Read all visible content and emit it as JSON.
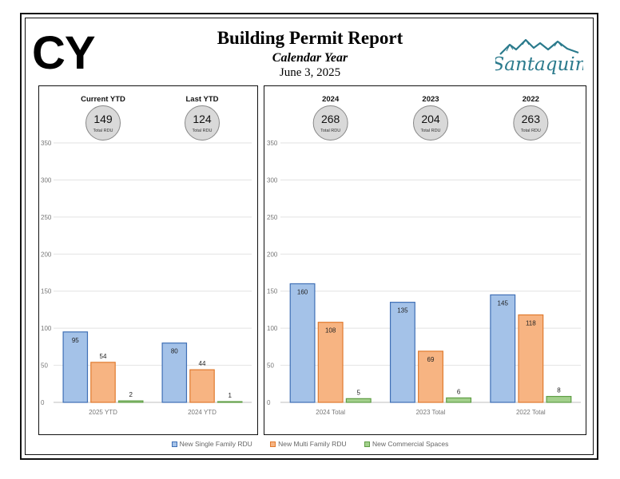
{
  "header": {
    "badge": "CY",
    "title": "Building Permit Report",
    "subtitle": "Calendar Year",
    "date": "June 3, 2025",
    "logo_text": "Santaquin"
  },
  "colors": {
    "single_fill": "#a4c2e8",
    "single_stroke": "#3f6fb5",
    "multi_fill": "#f7b482",
    "multi_stroke": "#e07a2e",
    "comm_fill": "#a3d08c",
    "comm_stroke": "#5f9e45",
    "logo": "#2a7a8c",
    "circle_fill": "#d9d9d9"
  },
  "legend": [
    {
      "label": "New Single Family RDU",
      "series": 0
    },
    {
      "label": "New Multi Family RDU",
      "series": 1
    },
    {
      "label": "New Commercial Spaces",
      "series": 2
    }
  ],
  "chart_data": [
    {
      "type": "bar",
      "categories": [
        "2025 YTD",
        "2024 YTD"
      ],
      "series": [
        {
          "name": "New Single Family RDU",
          "values": [
            95,
            80
          ]
        },
        {
          "name": "New Multi Family RDU",
          "values": [
            54,
            44
          ]
        },
        {
          "name": "New Commercial Spaces",
          "values": [
            2,
            1
          ]
        }
      ],
      "ylim": [
        0,
        350
      ],
      "yticks": [
        0,
        50,
        100,
        150,
        200,
        250,
        300,
        350
      ],
      "grid": true,
      "group_headers": [
        "Current YTD",
        "Last YTD"
      ],
      "totals": [
        149,
        124
      ],
      "total_label": "Total RDU"
    },
    {
      "type": "bar",
      "categories": [
        "2024 Total",
        "2023 Total",
        "2022 Total"
      ],
      "series": [
        {
          "name": "New Single Family RDU",
          "values": [
            160,
            135,
            145
          ]
        },
        {
          "name": "New Multi Family RDU",
          "values": [
            108,
            69,
            118
          ]
        },
        {
          "name": "New Commercial Spaces",
          "values": [
            5,
            6,
            8
          ]
        }
      ],
      "ylim": [
        0,
        350
      ],
      "yticks": [
        0,
        50,
        100,
        150,
        200,
        250,
        300,
        350
      ],
      "grid": true,
      "group_headers": [
        "2024",
        "2023",
        "2022"
      ],
      "totals": [
        268,
        204,
        263
      ],
      "total_label": "Total RDU"
    }
  ]
}
